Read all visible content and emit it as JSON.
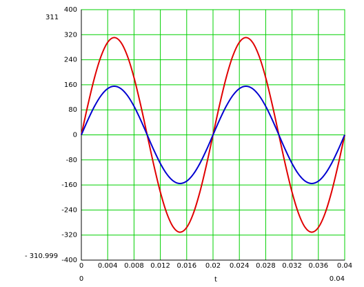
{
  "chart_data": {
    "type": "line",
    "x_label": "t",
    "x": [
      0,
      0.001,
      0.002,
      0.003,
      0.004,
      0.005,
      0.006,
      0.007,
      0.008,
      0.009,
      0.01,
      0.011,
      0.012,
      0.013,
      0.014,
      0.015,
      0.016,
      0.017,
      0.018,
      0.019,
      0.02,
      0.021,
      0.022,
      0.023,
      0.024,
      0.025,
      0.026,
      0.027,
      0.028,
      0.029,
      0.03,
      0.031,
      0.032,
      0.033,
      0.034,
      0.035,
      0.036,
      0.037,
      0.038,
      0.039,
      0.04
    ],
    "series": [
      {
        "color": "#e00000",
        "values": [
          0,
          96.1,
          182.8,
          251.6,
          295.8,
          311,
          295.8,
          251.6,
          182.8,
          96.1,
          0,
          -96.1,
          -182.8,
          -251.6,
          -295.8,
          -311,
          -295.8,
          -251.6,
          -182.8,
          -96.1,
          0,
          96.1,
          182.8,
          251.6,
          295.8,
          311,
          295.8,
          251.6,
          182.8,
          96.1,
          0,
          -96.1,
          -182.8,
          -251.6,
          -295.8,
          -311,
          -295.8,
          -251.6,
          -182.8,
          -96.1,
          0
        ]
      },
      {
        "color": "#0000d0",
        "values": [
          0,
          48.1,
          91.4,
          125.8,
          147.9,
          155.5,
          147.9,
          125.8,
          91.4,
          48.1,
          0,
          -48.1,
          -91.4,
          -125.8,
          -147.9,
          -155.5,
          -147.9,
          -125.8,
          -91.4,
          -48.1,
          0,
          48.1,
          91.4,
          125.8,
          147.9,
          155.5,
          147.9,
          125.8,
          91.4,
          48.1,
          0,
          -48.1,
          -91.4,
          -125.8,
          -147.9,
          -155.5,
          -147.9,
          -125.8,
          -91.4,
          -48.1,
          0
        ]
      }
    ],
    "xlim": [
      0,
      0.04
    ],
    "xticks": [
      0,
      0.004,
      0.008,
      0.012,
      0.016,
      0.02,
      0.024,
      0.028,
      0.032,
      0.036,
      0.04
    ],
    "ylim": [
      -400,
      400
    ],
    "yticks": [
      -400,
      -320,
      -240,
      -160,
      -80,
      0,
      80,
      160,
      240,
      320,
      400
    ],
    "y_max": 311,
    "y_min": {
      "value": -310.999,
      "label": "- 310.999"
    },
    "grid": true,
    "grid_color": "#00d000"
  }
}
